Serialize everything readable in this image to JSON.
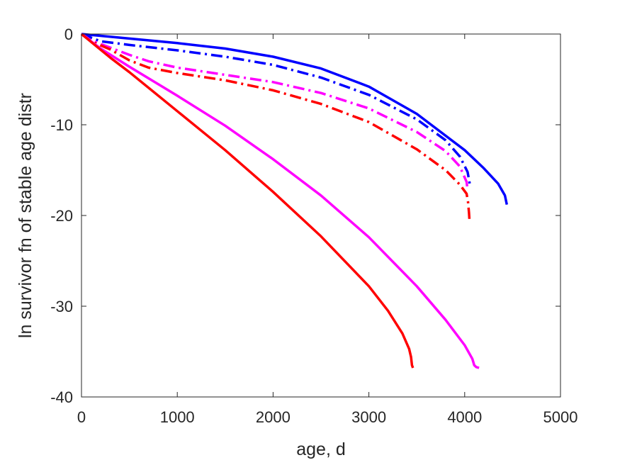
{
  "chart_data": {
    "type": "line",
    "title": "",
    "xlabel": "age, d",
    "ylabel": "ln survivor fn of stable age distr",
    "xlim": [
      0,
      5000
    ],
    "ylim": [
      -40,
      0
    ],
    "xticks": [
      0,
      1000,
      2000,
      3000,
      4000,
      5000
    ],
    "yticks": [
      -40,
      -30,
      -20,
      -10,
      0
    ],
    "xtick_labels": [
      "0",
      "1000",
      "2000",
      "3000",
      "4000",
      "5000"
    ],
    "ytick_labels": [
      "-40",
      "-30",
      "-20",
      "-10",
      "0"
    ],
    "grid": false,
    "legend": "none",
    "series": [
      {
        "color": "#0000ff",
        "style": "solid",
        "points": [
          [
            0,
            0
          ],
          [
            500,
            -0.5
          ],
          [
            1000,
            -1
          ],
          [
            1500,
            -1.6
          ],
          [
            2000,
            -2.5
          ],
          [
            2500,
            -3.8
          ],
          [
            3000,
            -5.8
          ],
          [
            3500,
            -8.8
          ],
          [
            4000,
            -12.8
          ],
          [
            4200,
            -14.8
          ],
          [
            4350,
            -16.5
          ],
          [
            4420,
            -17.8
          ],
          [
            4440,
            -18.8
          ]
        ]
      },
      {
        "color": "#0000ff",
        "style": "dashdot",
        "points": [
          [
            0,
            0
          ],
          [
            200,
            -0.8
          ],
          [
            500,
            -1.2
          ],
          [
            1000,
            -1.8
          ],
          [
            1500,
            -2.5
          ],
          [
            2000,
            -3.4
          ],
          [
            2500,
            -4.8
          ],
          [
            3000,
            -6.7
          ],
          [
            3500,
            -9.4
          ],
          [
            3800,
            -11.7
          ],
          [
            3950,
            -13.5
          ],
          [
            4030,
            -15.2
          ],
          [
            4060,
            -16.9
          ]
        ]
      },
      {
        "color": "#ff00ff",
        "style": "dashdot",
        "points": [
          [
            0,
            0
          ],
          [
            100,
            -0.7
          ],
          [
            300,
            -1.5
          ],
          [
            500,
            -2.3
          ],
          [
            700,
            -3
          ],
          [
            1000,
            -3.7
          ],
          [
            1500,
            -4.5
          ],
          [
            2000,
            -5.3
          ],
          [
            2500,
            -6.5
          ],
          [
            3000,
            -8.2
          ],
          [
            3500,
            -10.8
          ],
          [
            3800,
            -12.9
          ],
          [
            3950,
            -14.6
          ],
          [
            4020,
            -16.3
          ],
          [
            4030,
            -17.2
          ]
        ]
      },
      {
        "color": "#ff0000",
        "style": "dashdot",
        "points": [
          [
            0,
            0
          ],
          [
            100,
            -0.8
          ],
          [
            300,
            -1.7
          ],
          [
            500,
            -2.9
          ],
          [
            700,
            -3.7
          ],
          [
            1000,
            -4.3
          ],
          [
            1500,
            -5.1
          ],
          [
            2000,
            -6.2
          ],
          [
            2500,
            -7.7
          ],
          [
            3000,
            -9.7
          ],
          [
            3500,
            -12.7
          ],
          [
            3800,
            -15
          ],
          [
            3950,
            -16.6
          ],
          [
            4020,
            -17.6
          ],
          [
            4035,
            -18.5
          ],
          [
            4045,
            -19.7
          ],
          [
            4050,
            -20.6
          ]
        ]
      },
      {
        "color": "#ff00ff",
        "style": "solid",
        "points": [
          [
            0,
            0
          ],
          [
            200,
            -1.6
          ],
          [
            500,
            -3.6
          ],
          [
            1000,
            -6.8
          ],
          [
            1500,
            -10.1
          ],
          [
            2000,
            -13.8
          ],
          [
            2500,
            -17.8
          ],
          [
            3000,
            -22.4
          ],
          [
            3500,
            -27.8
          ],
          [
            3800,
            -31.5
          ],
          [
            4000,
            -34.3
          ],
          [
            4080,
            -35.8
          ],
          [
            4100,
            -36.5
          ],
          [
            4120,
            -36.7
          ],
          [
            4150,
            -36.8
          ]
        ]
      },
      {
        "color": "#ff0000",
        "style": "solid",
        "points": [
          [
            0,
            0
          ],
          [
            300,
            -2.6
          ],
          [
            500,
            -4.2
          ],
          [
            1000,
            -8.5
          ],
          [
            1500,
            -12.8
          ],
          [
            2000,
            -17.4
          ],
          [
            2500,
            -22.3
          ],
          [
            3000,
            -27.8
          ],
          [
            3200,
            -30.5
          ],
          [
            3350,
            -33
          ],
          [
            3420,
            -34.7
          ],
          [
            3440,
            -35.6
          ],
          [
            3450,
            -36.5
          ],
          [
            3460,
            -36.8
          ]
        ]
      }
    ]
  }
}
